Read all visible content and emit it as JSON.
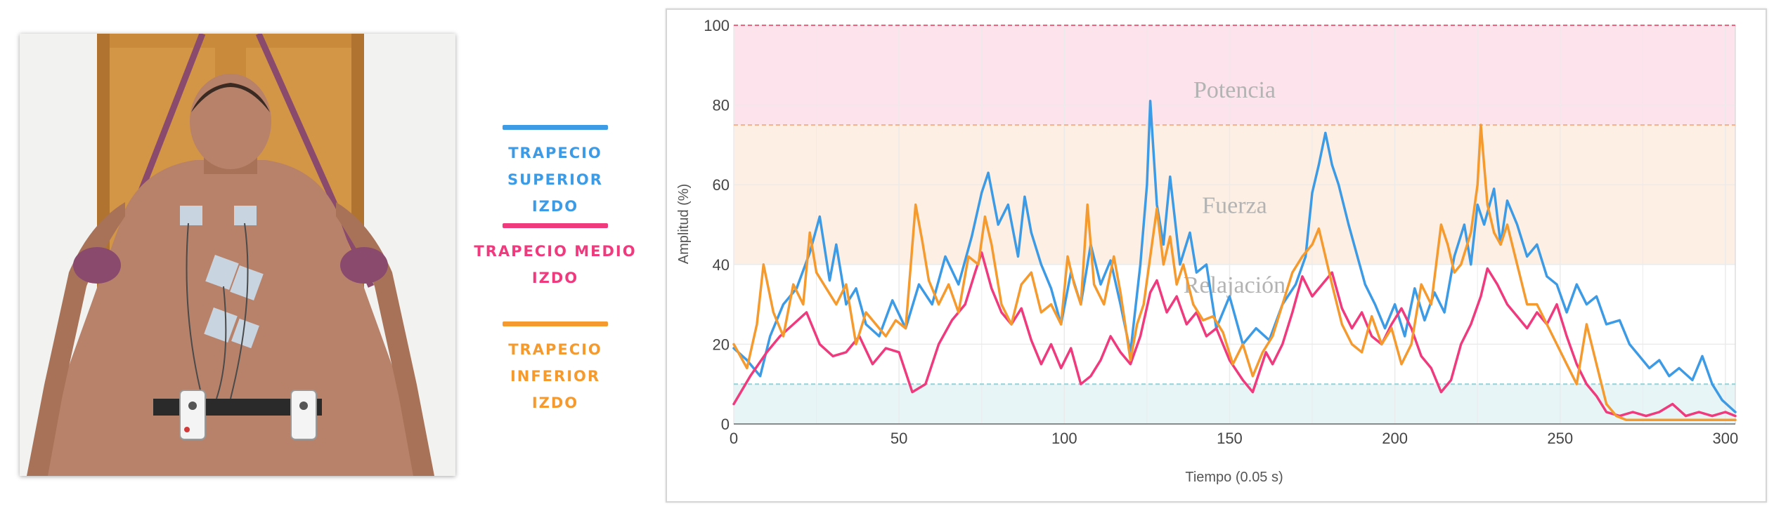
{
  "legend": [
    {
      "label": "TRAPECIO SUPERIOR\nIZDO",
      "color": "#3d9be6"
    },
    {
      "label": "TRAPECIO MEDIO\nIZDO",
      "color": "#f03a7e"
    },
    {
      "label": "TRAPECIO INFERIOR\nIZDO",
      "color": "#f59a2e"
    }
  ],
  "colors": {
    "potencia_band": "#fde3ec",
    "fuerza_band": "#fdefe4",
    "relajacion_band": "#e8f5f7",
    "potencia_line": "#f0607f",
    "fuerza_line": "#f6b28a",
    "relajacion_line": "#8fd4d8",
    "grid": "#ebebeb",
    "photo_door": "#c98a3c",
    "photo_skin": "#b8826a",
    "photo_band": "#8a4a6e",
    "photo_electrode": "#c8d4e0"
  },
  "photo": {
    "description_icon": "person-back-emg-icon"
  },
  "chart_data": {
    "type": "line",
    "title": "",
    "xlabel": "Tiempo (0.05 s)",
    "ylabel": "Amplitud (%)",
    "xlim": [
      0,
      303
    ],
    "ylim": [
      0,
      100
    ],
    "xticks": [
      0,
      50,
      100,
      150,
      200,
      250,
      300
    ],
    "yticks": [
      0,
      20,
      40,
      60,
      80,
      100
    ],
    "bands": [
      {
        "name": "Potencia",
        "from": 75,
        "to": 100
      },
      {
        "name": "Fuerza",
        "from": 40,
        "to": 75
      },
      {
        "name": "Relajación",
        "from": 0,
        "to": 10
      }
    ],
    "series": [
      {
        "name": "TRAPECIO SUPERIOR IZDO",
        "points": [
          [
            0,
            19
          ],
          [
            4,
            16
          ],
          [
            8,
            12
          ],
          [
            11,
            22
          ],
          [
            15,
            30
          ],
          [
            19,
            34
          ],
          [
            23,
            43
          ],
          [
            26,
            52
          ],
          [
            29,
            36
          ],
          [
            31,
            45
          ],
          [
            34,
            30
          ],
          [
            37,
            34
          ],
          [
            40,
            25
          ],
          [
            44,
            22
          ],
          [
            48,
            31
          ],
          [
            52,
            24
          ],
          [
            56,
            35
          ],
          [
            60,
            30
          ],
          [
            64,
            42
          ],
          [
            68,
            35
          ],
          [
            72,
            47
          ],
          [
            75,
            58
          ],
          [
            77,
            63
          ],
          [
            80,
            50
          ],
          [
            83,
            55
          ],
          [
            86,
            42
          ],
          [
            88,
            57
          ],
          [
            90,
            48
          ],
          [
            93,
            40
          ],
          [
            96,
            34
          ],
          [
            99,
            25
          ],
          [
            102,
            38
          ],
          [
            105,
            30
          ],
          [
            108,
            45
          ],
          [
            111,
            35
          ],
          [
            114,
            41
          ],
          [
            117,
            30
          ],
          [
            120,
            18
          ],
          [
            123,
            40
          ],
          [
            125,
            60
          ],
          [
            126,
            81
          ],
          [
            128,
            55
          ],
          [
            130,
            45
          ],
          [
            132,
            62
          ],
          [
            135,
            40
          ],
          [
            138,
            48
          ],
          [
            140,
            38
          ],
          [
            143,
            40
          ],
          [
            146,
            24
          ],
          [
            150,
            32
          ],
          [
            154,
            20
          ],
          [
            158,
            24
          ],
          [
            162,
            21
          ],
          [
            166,
            30
          ],
          [
            170,
            35
          ],
          [
            173,
            42
          ],
          [
            175,
            58
          ],
          [
            177,
            65
          ],
          [
            179,
            73
          ],
          [
            181,
            65
          ],
          [
            183,
            60
          ],
          [
            186,
            50
          ],
          [
            188,
            44
          ],
          [
            191,
            35
          ],
          [
            194,
            30
          ],
          [
            197,
            24
          ],
          [
            200,
            30
          ],
          [
            203,
            22
          ],
          [
            206,
            34
          ],
          [
            209,
            26
          ],
          [
            212,
            33
          ],
          [
            215,
            28
          ],
          [
            218,
            42
          ],
          [
            221,
            50
          ],
          [
            223,
            40
          ],
          [
            225,
            55
          ],
          [
            227,
            50
          ],
          [
            230,
            59
          ],
          [
            232,
            45
          ],
          [
            234,
            56
          ],
          [
            237,
            50
          ],
          [
            240,
            42
          ],
          [
            243,
            45
          ],
          [
            246,
            37
          ],
          [
            249,
            35
          ],
          [
            252,
            28
          ],
          [
            255,
            35
          ],
          [
            258,
            30
          ],
          [
            261,
            32
          ],
          [
            264,
            25
          ],
          [
            268,
            26
          ],
          [
            271,
            20
          ],
          [
            274,
            17
          ],
          [
            277,
            14
          ],
          [
            280,
            16
          ],
          [
            283,
            12
          ],
          [
            286,
            14
          ],
          [
            290,
            11
          ],
          [
            293,
            17
          ],
          [
            296,
            10
          ],
          [
            299,
            6
          ],
          [
            303,
            3
          ]
        ]
      },
      {
        "name": "TRAPECIO MEDIO IZDO",
        "points": [
          [
            0,
            5
          ],
          [
            5,
            12
          ],
          [
            10,
            18
          ],
          [
            14,
            22
          ],
          [
            18,
            25
          ],
          [
            22,
            28
          ],
          [
            26,
            20
          ],
          [
            30,
            17
          ],
          [
            34,
            18
          ],
          [
            38,
            22
          ],
          [
            42,
            15
          ],
          [
            46,
            19
          ],
          [
            50,
            18
          ],
          [
            54,
            8
          ],
          [
            58,
            10
          ],
          [
            62,
            20
          ],
          [
            66,
            26
          ],
          [
            70,
            30
          ],
          [
            73,
            38
          ],
          [
            75,
            43
          ],
          [
            78,
            34
          ],
          [
            81,
            28
          ],
          [
            84,
            25
          ],
          [
            87,
            29
          ],
          [
            90,
            21
          ],
          [
            93,
            15
          ],
          [
            96,
            20
          ],
          [
            99,
            14
          ],
          [
            102,
            19
          ],
          [
            105,
            10
          ],
          [
            108,
            12
          ],
          [
            111,
            16
          ],
          [
            114,
            22
          ],
          [
            117,
            18
          ],
          [
            120,
            15
          ],
          [
            123,
            22
          ],
          [
            126,
            33
          ],
          [
            128,
            36
          ],
          [
            131,
            28
          ],
          [
            134,
            32
          ],
          [
            137,
            25
          ],
          [
            140,
            28
          ],
          [
            143,
            22
          ],
          [
            146,
            24
          ],
          [
            150,
            16
          ],
          [
            154,
            11
          ],
          [
            157,
            8
          ],
          [
            159,
            13
          ],
          [
            161,
            18
          ],
          [
            163,
            15
          ],
          [
            166,
            20
          ],
          [
            169,
            28
          ],
          [
            172,
            37
          ],
          [
            175,
            32
          ],
          [
            178,
            35
          ],
          [
            181,
            38
          ],
          [
            184,
            29
          ],
          [
            187,
            24
          ],
          [
            190,
            28
          ],
          [
            193,
            22
          ],
          [
            196,
            20
          ],
          [
            199,
            25
          ],
          [
            202,
            29
          ],
          [
            205,
            24
          ],
          [
            208,
            17
          ],
          [
            211,
            14
          ],
          [
            214,
            8
          ],
          [
            217,
            11
          ],
          [
            220,
            20
          ],
          [
            223,
            25
          ],
          [
            226,
            32
          ],
          [
            228,
            39
          ],
          [
            231,
            35
          ],
          [
            234,
            30
          ],
          [
            237,
            27
          ],
          [
            240,
            24
          ],
          [
            243,
            28
          ],
          [
            246,
            25
          ],
          [
            249,
            30
          ],
          [
            252,
            22
          ],
          [
            255,
            15
          ],
          [
            258,
            10
          ],
          [
            261,
            7
          ],
          [
            264,
            3
          ],
          [
            268,
            2
          ],
          [
            272,
            3
          ],
          [
            276,
            2
          ],
          [
            280,
            3
          ],
          [
            284,
            5
          ],
          [
            288,
            2
          ],
          [
            292,
            3
          ],
          [
            296,
            2
          ],
          [
            300,
            3
          ],
          [
            303,
            2
          ]
        ]
      },
      {
        "name": "TRAPECIO INFERIOR IZDO",
        "points": [
          [
            0,
            20
          ],
          [
            4,
            14
          ],
          [
            7,
            25
          ],
          [
            9,
            40
          ],
          [
            12,
            28
          ],
          [
            15,
            22
          ],
          [
            18,
            35
          ],
          [
            21,
            30
          ],
          [
            23,
            48
          ],
          [
            25,
            38
          ],
          [
            28,
            34
          ],
          [
            31,
            30
          ],
          [
            34,
            35
          ],
          [
            37,
            20
          ],
          [
            40,
            28
          ],
          [
            43,
            25
          ],
          [
            46,
            22
          ],
          [
            49,
            26
          ],
          [
            52,
            24
          ],
          [
            55,
            55
          ],
          [
            57,
            46
          ],
          [
            59,
            36
          ],
          [
            62,
            30
          ],
          [
            65,
            35
          ],
          [
            68,
            28
          ],
          [
            71,
            42
          ],
          [
            74,
            40
          ],
          [
            76,
            52
          ],
          [
            78,
            45
          ],
          [
            81,
            30
          ],
          [
            84,
            25
          ],
          [
            87,
            35
          ],
          [
            90,
            38
          ],
          [
            93,
            28
          ],
          [
            96,
            30
          ],
          [
            99,
            25
          ],
          [
            101,
            42
          ],
          [
            103,
            35
          ],
          [
            105,
            30
          ],
          [
            107,
            55
          ],
          [
            109,
            35
          ],
          [
            112,
            30
          ],
          [
            115,
            42
          ],
          [
            117,
            33
          ],
          [
            120,
            16
          ],
          [
            122,
            25
          ],
          [
            124,
            30
          ],
          [
            126,
            42
          ],
          [
            128,
            54
          ],
          [
            130,
            40
          ],
          [
            132,
            47
          ],
          [
            134,
            35
          ],
          [
            136,
            40
          ],
          [
            139,
            30
          ],
          [
            142,
            26
          ],
          [
            145,
            27
          ],
          [
            148,
            23
          ],
          [
            151,
            15
          ],
          [
            154,
            20
          ],
          [
            157,
            12
          ],
          [
            160,
            18
          ],
          [
            163,
            22
          ],
          [
            166,
            30
          ],
          [
            169,
            38
          ],
          [
            172,
            42
          ],
          [
            175,
            45
          ],
          [
            177,
            49
          ],
          [
            179,
            42
          ],
          [
            181,
            35
          ],
          [
            184,
            25
          ],
          [
            187,
            20
          ],
          [
            190,
            18
          ],
          [
            193,
            27
          ],
          [
            196,
            20
          ],
          [
            199,
            24
          ],
          [
            202,
            15
          ],
          [
            205,
            20
          ],
          [
            208,
            35
          ],
          [
            211,
            30
          ],
          [
            214,
            50
          ],
          [
            216,
            45
          ],
          [
            218,
            38
          ],
          [
            220,
            40
          ],
          [
            223,
            48
          ],
          [
            225,
            60
          ],
          [
            226,
            75
          ],
          [
            228,
            55
          ],
          [
            230,
            48
          ],
          [
            232,
            45
          ],
          [
            234,
            50
          ],
          [
            237,
            40
          ],
          [
            240,
            30
          ],
          [
            243,
            30
          ],
          [
            246,
            25
          ],
          [
            249,
            20
          ],
          [
            252,
            15
          ],
          [
            255,
            10
          ],
          [
            258,
            25
          ],
          [
            261,
            15
          ],
          [
            264,
            5
          ],
          [
            267,
            2
          ],
          [
            270,
            1
          ],
          [
            275,
            1
          ],
          [
            280,
            1
          ],
          [
            285,
            1
          ],
          [
            290,
            1
          ],
          [
            295,
            1
          ],
          [
            300,
            1
          ],
          [
            303,
            1
          ]
        ]
      }
    ]
  }
}
